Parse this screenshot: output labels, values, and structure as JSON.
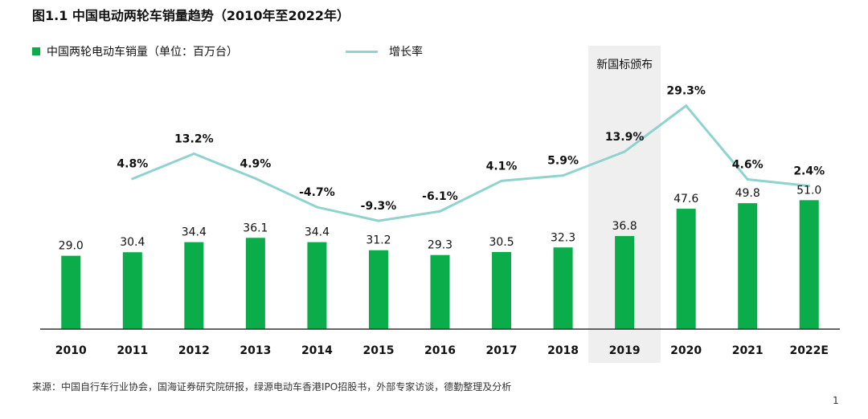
{
  "title": "图1.1 中国电动两轮车销量趋势（2010年至2022年）",
  "legend": {
    "bar_label": "中国两轮电动车销量（单位：百万台）",
    "line_label": "增长率"
  },
  "highlight": {
    "category": "2019",
    "label": "新国标颁布",
    "color": "#efefef"
  },
  "source": "来源：中国自行车行业协会，国海证券研究院研报，绿源电动车香港IPO招股书，外部专家访谈，德勤整理及分析",
  "page_number": "1",
  "colors": {
    "bar": "#0aad4a",
    "line": "#8fd3cf",
    "axis": "#333333"
  },
  "chart_data": {
    "type": "bar",
    "categories": [
      "2010",
      "2011",
      "2012",
      "2013",
      "2014",
      "2015",
      "2016",
      "2017",
      "2018",
      "2019",
      "2020",
      "2021",
      "2022E"
    ],
    "series": [
      {
        "name": "中国两轮电动车销量（单位：百万台）",
        "type": "bar",
        "values": [
          29.0,
          30.4,
          34.4,
          36.1,
          34.4,
          31.2,
          29.3,
          30.5,
          32.3,
          36.8,
          47.6,
          49.8,
          51.0
        ],
        "labels": [
          "29.0",
          "30.4",
          "34.4",
          "36.1",
          "34.4",
          "31.2",
          "29.3",
          "30.5",
          "32.3",
          "36.8",
          "47.6",
          "49.8",
          "51.0"
        ]
      },
      {
        "name": "增长率",
        "type": "line",
        "values": [
          null,
          4.8,
          13.2,
          4.9,
          -4.7,
          -9.3,
          -6.1,
          4.1,
          5.9,
          13.9,
          29.3,
          4.6,
          2.4
        ],
        "labels": [
          "",
          "4.8%",
          "13.2%",
          "4.9%",
          "-4.7%",
          "-9.3%",
          "-6.1%",
          "4.1%",
          "5.9%",
          "13.9%",
          "29.3%",
          "4.6%",
          "2.4%"
        ]
      }
    ],
    "ylim_bar": [
      0,
      100
    ],
    "ylim_line": [
      -30,
      40
    ],
    "grid": false,
    "legend_position": "top-left"
  }
}
